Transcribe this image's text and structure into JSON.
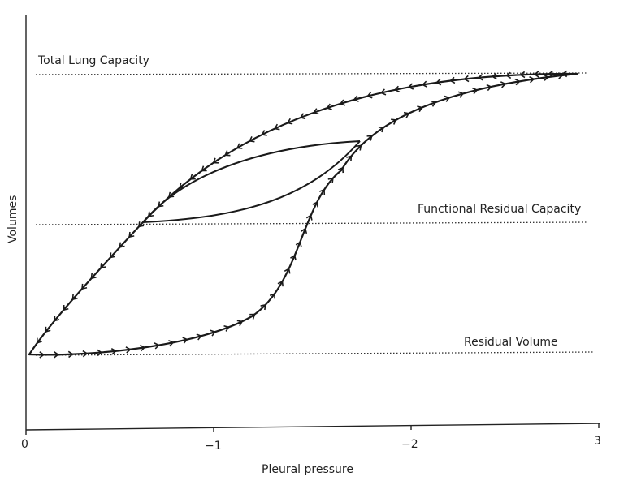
{
  "axes": {
    "xlabel": "Pleural pressure",
    "ylabel": "Volumes",
    "xticks": [
      "0",
      "−1",
      "−2",
      "3"
    ]
  },
  "levels": {
    "tlc": "Total Lung Capacity",
    "frc": "Functional Residual Capacity",
    "rv": "Residual Volume"
  },
  "loops": {
    "outer": "pressure-volume hysteresis loop",
    "inner": "tidal breathing loop"
  },
  "icons": {
    "inflation_arrow": "arrowhead-right-icon",
    "deflation_arrow": "arrowhead-left-icon"
  }
}
